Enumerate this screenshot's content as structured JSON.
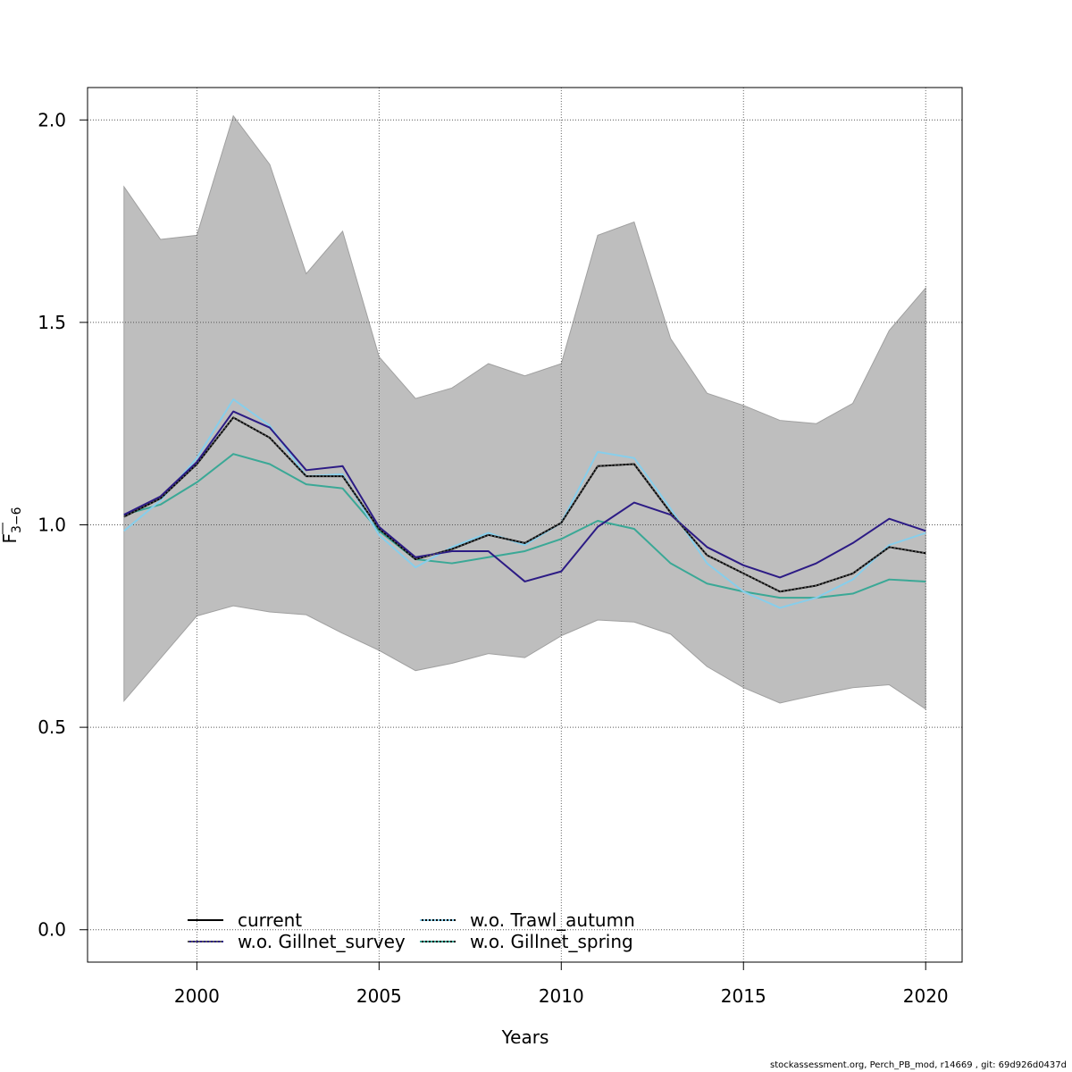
{
  "chart_data": {
    "type": "line",
    "title": "",
    "xlabel": "Years",
    "ylabel": "F",
    "ylabel_sub": "3−6",
    "xlim": [
      1997,
      2021
    ],
    "ylim": [
      -0.08,
      2.08
    ],
    "xticks": [
      2000,
      2005,
      2010,
      2015,
      2020
    ],
    "yticks": [
      0.0,
      0.5,
      1.0,
      1.5,
      2.0
    ],
    "xtick_labels": [
      "2000",
      "2005",
      "2010",
      "2015",
      "2020"
    ],
    "ytick_labels": [
      "0.0",
      "0.5",
      "1.0",
      "1.5",
      "2.0"
    ],
    "grid": true,
    "legend_position": "bottom-left",
    "x": [
      1998,
      1999,
      2000,
      2001,
      2002,
      2003,
      2004,
      2005,
      2006,
      2007,
      2008,
      2009,
      2010,
      2011,
      2012,
      2013,
      2014,
      2015,
      2016,
      2017,
      2018,
      2019,
      2020
    ],
    "band": {
      "color": "#bebebe",
      "lower": [
        0.565,
        0.67,
        0.775,
        0.8,
        0.785,
        0.778,
        0.732,
        0.69,
        0.64,
        0.658,
        0.682,
        0.672,
        0.726,
        0.765,
        0.76,
        0.73,
        0.65,
        0.598,
        0.56,
        0.58,
        0.598,
        0.605,
        0.545
      ],
      "upper": [
        1.835,
        1.705,
        1.715,
        2.01,
        1.89,
        1.62,
        1.725,
        1.415,
        1.312,
        1.338,
        1.398,
        1.368,
        1.398,
        1.715,
        1.748,
        1.46,
        1.325,
        1.295,
        1.258,
        1.25,
        1.3,
        1.48,
        1.585
      ]
    },
    "series": [
      {
        "name": "current",
        "color": "#000000",
        "style": "solid",
        "values": [
          1.02,
          1.065,
          1.15,
          1.265,
          1.215,
          1.12,
          1.12,
          0.99,
          0.915,
          0.94,
          0.975,
          0.955,
          1.005,
          1.145,
          1.15,
          1.03,
          0.925,
          0.88,
          0.835,
          0.85,
          0.88,
          0.945,
          0.93
        ]
      },
      {
        "name": "w.o. Gillnet_survey",
        "color": "#2c1b85",
        "style": "solid",
        "values": [
          1.025,
          1.07,
          1.155,
          1.28,
          1.24,
          1.135,
          1.145,
          0.995,
          0.92,
          0.935,
          0.935,
          0.86,
          0.885,
          0.995,
          1.055,
          1.025,
          0.945,
          0.9,
          0.87,
          0.905,
          0.955,
          1.015,
          0.985
        ]
      },
      {
        "name": "w.o. Trawl_autumn",
        "color": "#87ceeb",
        "style": "solid",
        "values": [
          0.985,
          1.06,
          1.165,
          1.31,
          1.245,
          1.12,
          1.125,
          0.975,
          0.895,
          0.945,
          0.98,
          0.95,
          1.005,
          1.18,
          1.165,
          1.04,
          0.905,
          0.835,
          0.795,
          0.82,
          0.865,
          0.95,
          0.98
        ]
      },
      {
        "name": "w.o. Gillnet_spring",
        "color": "#3aa896",
        "style": "solid",
        "values": [
          1.025,
          1.05,
          1.105,
          1.175,
          1.15,
          1.1,
          1.09,
          0.985,
          0.915,
          0.905,
          0.92,
          0.935,
          0.965,
          1.01,
          0.99,
          0.905,
          0.855,
          0.835,
          0.82,
          0.82,
          0.83,
          0.865,
          0.86
        ]
      }
    ],
    "overlay_dashed": {
      "series": "current",
      "color": "#555555"
    }
  },
  "legend": {
    "items": [
      {
        "label": "current",
        "color": "#000000",
        "dotted_color": ""
      },
      {
        "label": "w.o. Gillnet_survey",
        "color": "#2c1b85",
        "dotted_color": "#555555"
      },
      {
        "label": "w.o. Trawl_autumn",
        "color": "#000000",
        "dotted_color": "#87ceeb"
      },
      {
        "label": "w.o. Gillnet_spring",
        "color": "#000000",
        "dotted_color": "#3aa896"
      }
    ]
  },
  "footer": {
    "text": "stockassessment.org, Perch_PB_mod, r14669 , git: 69d926d0437d"
  }
}
